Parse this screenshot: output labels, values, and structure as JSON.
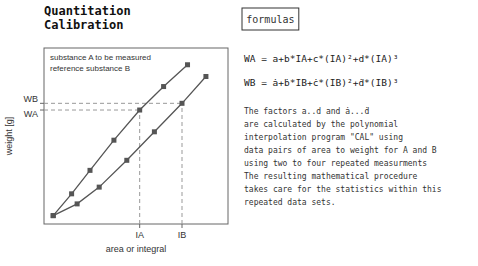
{
  "chart_data": {
    "type": "line",
    "title": "Quantitation\nCalibration",
    "x_label": "area or integral",
    "y_label": "weight [g]",
    "xlim": [
      0,
      1.0
    ],
    "ylim": [
      0,
      1.05
    ],
    "xticks": [
      {
        "value": 0.52,
        "label": "IA"
      },
      {
        "value": 0.75,
        "label": "IB"
      }
    ],
    "yticks": [
      {
        "value": 0.68,
        "label": "WA"
      },
      {
        "value": 0.72,
        "label": "WB"
      }
    ],
    "series": [
      {
        "x": [
          0.05,
          0.15,
          0.25,
          0.38,
          0.52,
          0.65,
          0.78
        ],
        "values": [
          0.05,
          0.18,
          0.32,
          0.5,
          0.68,
          0.82,
          0.95
        ],
        "color": "#555555",
        "marker": "square",
        "line_style": "solid"
      },
      {
        "x": [
          0.05,
          0.18,
          0.3,
          0.45,
          0.6,
          0.75,
          0.88
        ],
        "values": [
          0.05,
          0.12,
          0.22,
          0.38,
          0.55,
          0.72,
          0.88
        ],
        "color": "#555555",
        "marker": "square",
        "line_style": "solid"
      }
    ],
    "annotations": [
      "substance A to be measured",
      "reference substance B"
    ],
    "box_title": "formulas",
    "formulas": [
      "WA = a+b*IA+c*(IA)²+d*(IA)³",
      "WB = ȧ+ḃ*IB+ċ*(IB)²+ḋ*(IB)³"
    ],
    "description": "The factors a..d and ȧ...ḋ\nare calculated by the polynomial\ninterpolation program \"CAL\" using\ndata pairs of area to weight for A and B\nusing two to four repeated measurments\nThe resulting mathematical procedure\ntakes care for the statistics within this\nrepeated data sets."
  }
}
